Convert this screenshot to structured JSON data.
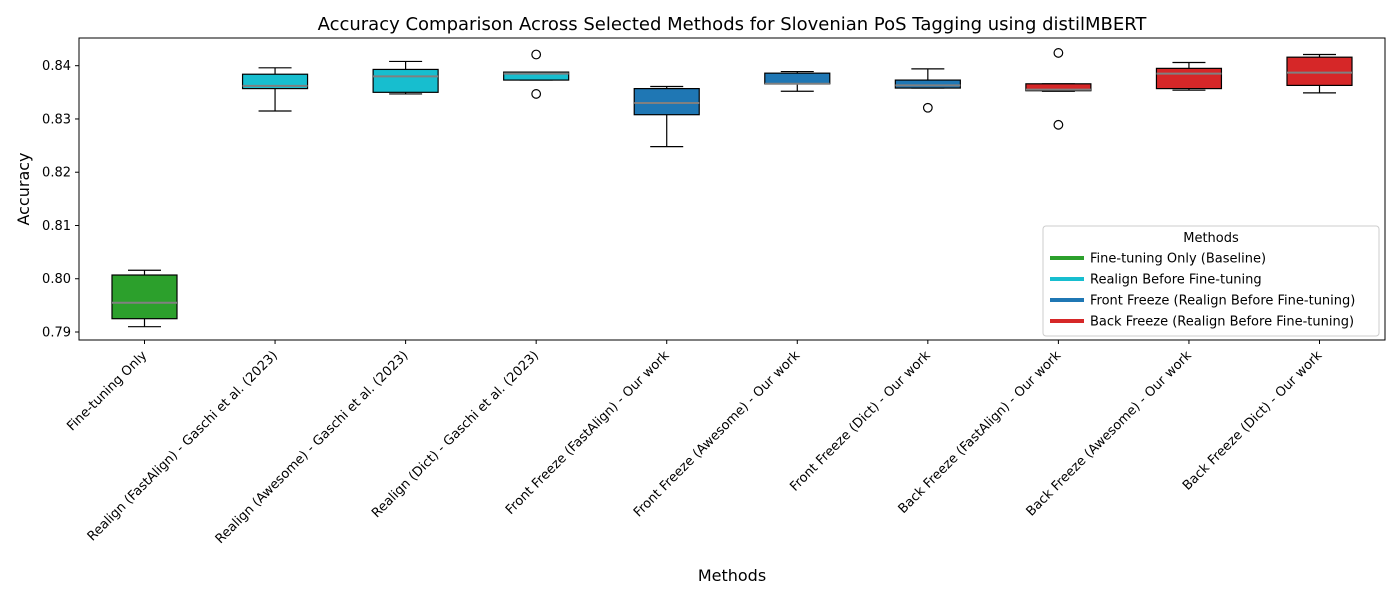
{
  "chart_data": {
    "type": "box",
    "title": "Accuracy Comparison Across Selected Methods for Slovenian PoS Tagging using distilMBERT",
    "xlabel": "Methods",
    "ylabel": "Accuracy",
    "ylim": [
      0.7885,
      0.8452
    ],
    "yticks": [
      0.79,
      0.8,
      0.81,
      0.82,
      0.83,
      0.84
    ],
    "ytick_labels": [
      "0.79",
      "0.80",
      "0.81",
      "0.82",
      "0.83",
      "0.84"
    ],
    "grid": false,
    "legend": {
      "title": "Methods",
      "placement": "center-right",
      "entries": [
        {
          "label": "Fine-tuning Only (Baseline)",
          "color": "#2ca02c"
        },
        {
          "label": "Realign Before Fine-tuning",
          "color": "#17becf"
        },
        {
          "label": "Front Freeze (Realign Before Fine-tuning)",
          "color": "#1f77b4"
        },
        {
          "label": "Back Freeze (Realign Before Fine-tuning)",
          "color": "#d62728"
        }
      ]
    },
    "median_color": "#808080",
    "boxes": [
      {
        "label": "Fine-tuning Only",
        "color": "#2ca02c",
        "whislo": 0.791,
        "q1": 0.7925,
        "median": 0.7955,
        "q3": 0.8007,
        "whishi": 0.8016,
        "fliers": []
      },
      {
        "label": "Realign (FastAlign) - Gaschi et al. (2023)",
        "color": "#17becf",
        "whislo": 0.8315,
        "q1": 0.8357,
        "median": 0.8362,
        "q3": 0.8384,
        "whishi": 0.8396,
        "fliers": []
      },
      {
        "label": "Realign (Awesome) - Gaschi et al. (2023)",
        "color": "#17becf",
        "whislo": 0.8347,
        "q1": 0.835,
        "median": 0.838,
        "q3": 0.8393,
        "whishi": 0.8408,
        "fliers": []
      },
      {
        "label": "Realign (Dict) - Gaschi et al. (2023)",
        "color": "#17becf",
        "whislo": 0.8373,
        "q1": 0.8373,
        "median": 0.8385,
        "q3": 0.8388,
        "whishi": 0.8388,
        "fliers": [
          0.8421,
          0.8347
        ]
      },
      {
        "label": "Front Freeze (FastAlign) - Our work",
        "color": "#1f77b4",
        "whislo": 0.8248,
        "q1": 0.8308,
        "median": 0.833,
        "q3": 0.8357,
        "whishi": 0.8361,
        "fliers": []
      },
      {
        "label": "Front Freeze (Awesome) - Our work",
        "color": "#1f77b4",
        "whislo": 0.8352,
        "q1": 0.8366,
        "median": 0.8366,
        "q3": 0.8386,
        "whishi": 0.8389,
        "fliers": []
      },
      {
        "label": "Front Freeze (Dict) - Our work",
        "color": "#1f77b4",
        "whislo": 0.8358,
        "q1": 0.8358,
        "median": 0.8363,
        "q3": 0.8373,
        "whishi": 0.8394,
        "fliers": [
          0.8321
        ]
      },
      {
        "label": "Back Freeze (FastAlign) - Our work",
        "color": "#d62728",
        "whislo": 0.8352,
        "q1": 0.8353,
        "median": 0.8355,
        "q3": 0.8366,
        "whishi": 0.8366,
        "fliers": [
          0.8424,
          0.8289
        ]
      },
      {
        "label": "Back Freeze (Awesome) - Our work",
        "color": "#d62728",
        "whislo": 0.8354,
        "q1": 0.8357,
        "median": 0.8385,
        "q3": 0.8395,
        "whishi": 0.8406,
        "fliers": []
      },
      {
        "label": "Back Freeze (Dict) - Our work",
        "color": "#d62728",
        "whislo": 0.8349,
        "q1": 0.8363,
        "median": 0.8387,
        "q3": 0.8416,
        "whishi": 0.8421,
        "fliers": []
      }
    ]
  }
}
